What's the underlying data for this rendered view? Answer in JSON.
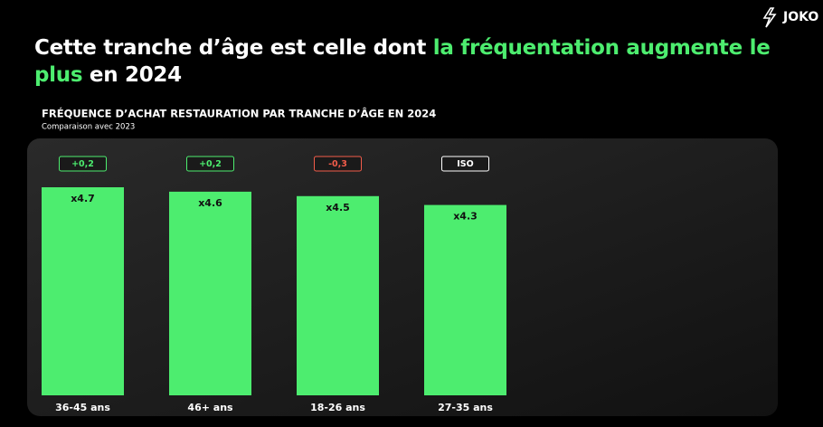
{
  "brand": "JOKO",
  "headline": {
    "before": "Cette tranche d’âge est celle dont ",
    "highlight": "la fréquentation augmente le plus",
    "after": " en 2024"
  },
  "chart_data": {
    "type": "bar",
    "title": "FRÉQUENCE D’ACHAT RESTAURATION PAR TRANCHE D’ÂGE EN 2024",
    "subtitle": "Comparaison avec 2023",
    "categories": [
      "36-45 ans",
      "46+ ans",
      "18-26 ans",
      "27-35 ans"
    ],
    "values": [
      4.7,
      4.6,
      4.5,
      4.3
    ],
    "value_labels": [
      "x4.7",
      "x4.6",
      "x4.5",
      "x4.3"
    ],
    "color": "#4ded6f",
    "annotations": [
      "+0,2",
      "+0,2",
      "-0,3",
      "ISO"
    ],
    "annotation_colors": [
      "#4ded6f",
      "#4ded6f",
      "#f25c4a",
      "#ffffff"
    ]
  }
}
